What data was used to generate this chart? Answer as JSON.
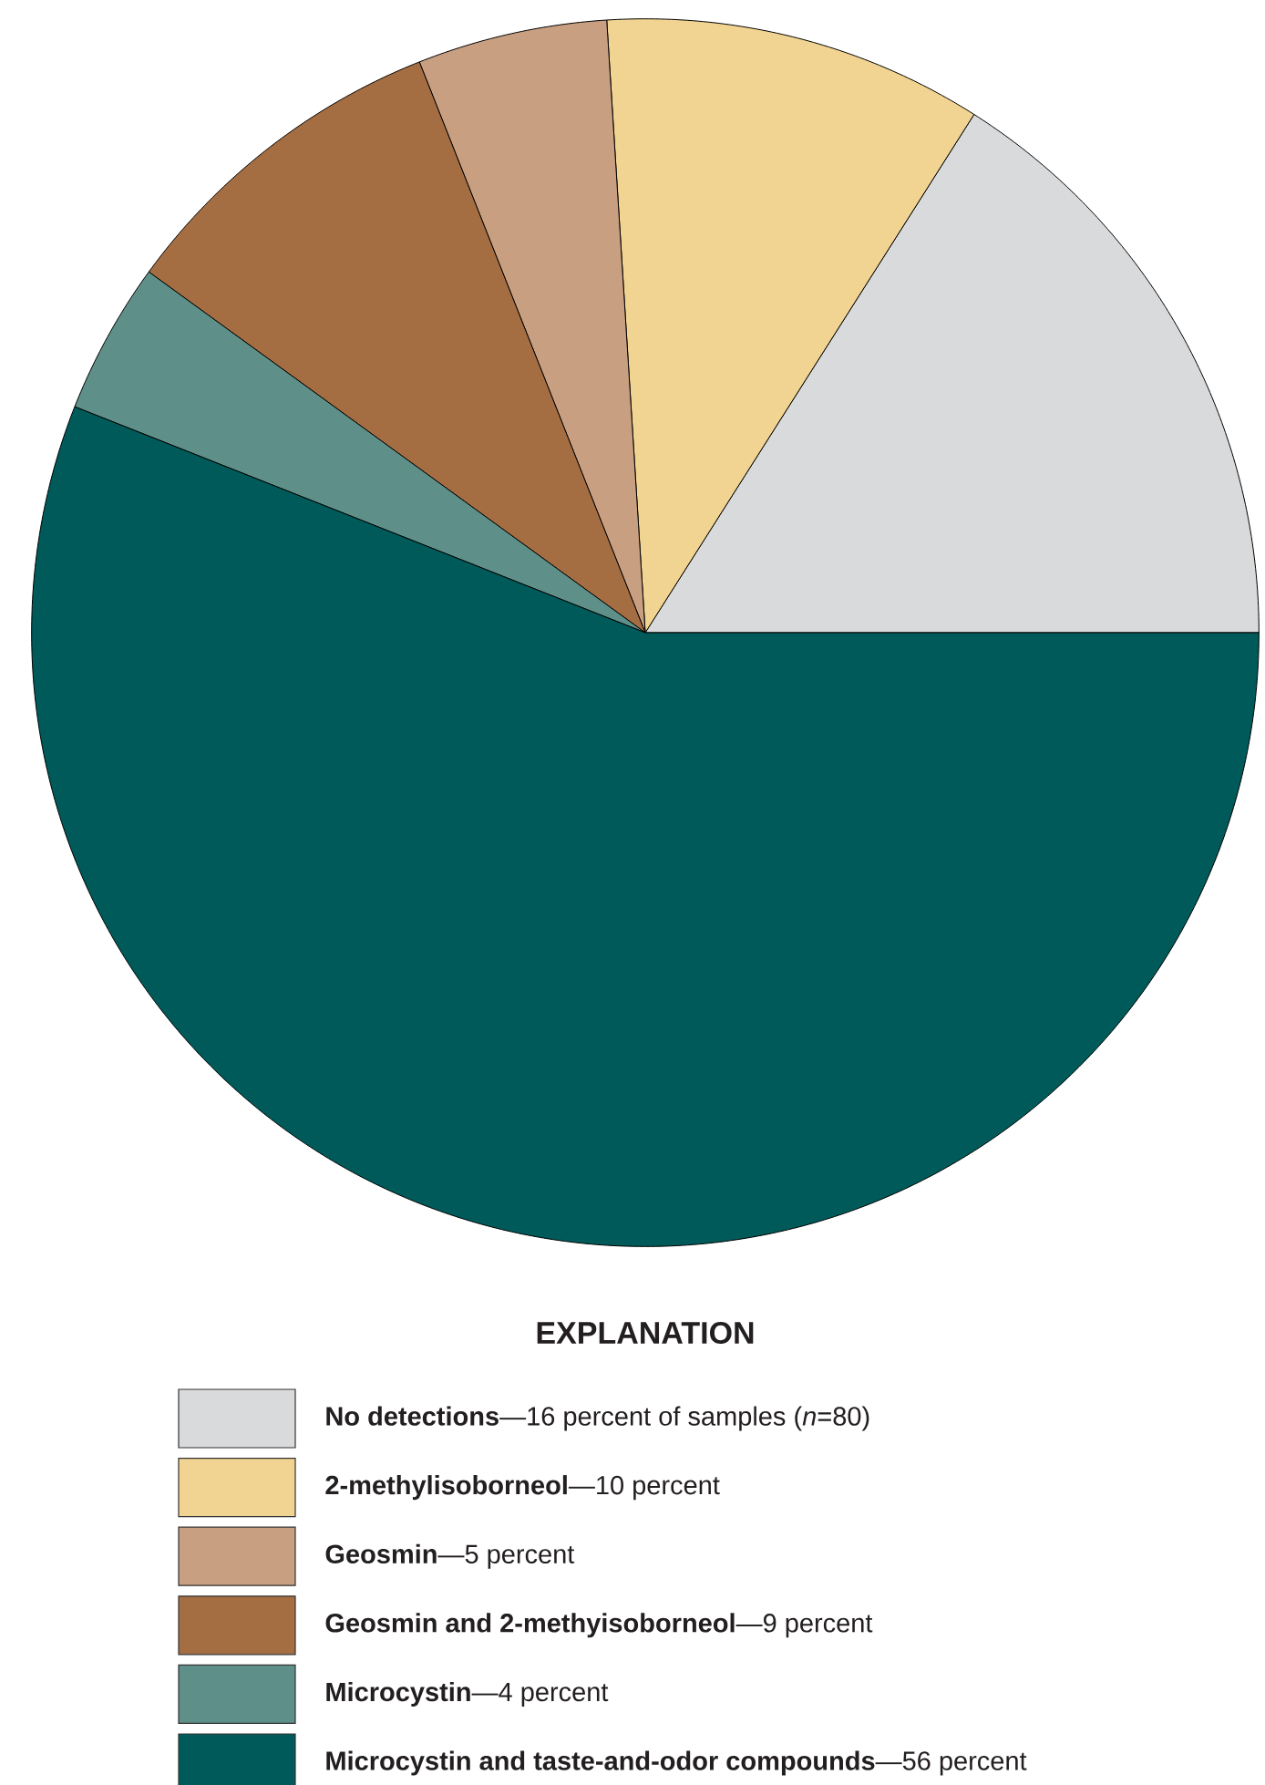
{
  "chart_data": {
    "type": "pie",
    "legend_title": "EXPLANATION",
    "legend": "bottom",
    "categories": [
      "**No detections**—16 percent of samples (*n*=80)",
      "**2-methylisoborneol**—10 percent",
      "**Geosmin**—5 percent",
      "**Geosmin and 2-methyisoborneol**—9 percent",
      "**Microcystin**—4 percent",
      "**Microcystin and taste-and-odor compounds**—56 percent"
    ],
    "values": [
      16,
      10,
      5,
      9,
      4,
      56
    ],
    "colors": [
      "#d9dadb",
      "#f2d492",
      "#c89f80",
      "#a56e42",
      "#5e9089",
      "#005a5a"
    ]
  }
}
